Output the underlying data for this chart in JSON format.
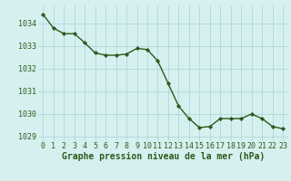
{
  "x": [
    0,
    1,
    2,
    3,
    4,
    5,
    6,
    7,
    8,
    9,
    10,
    11,
    12,
    13,
    14,
    15,
    16,
    17,
    18,
    19,
    20,
    21,
    22,
    23
  ],
  "y": [
    1034.4,
    1033.8,
    1033.55,
    1033.55,
    1033.15,
    1032.7,
    1032.6,
    1032.6,
    1032.65,
    1032.9,
    1032.85,
    1032.35,
    1031.35,
    1030.35,
    1029.8,
    1029.4,
    1029.45,
    1029.8,
    1029.8,
    1029.8,
    1030.0,
    1029.8,
    1029.45,
    1029.35
  ],
  "line_color": "#2d5a1b",
  "marker": "D",
  "marker_size": 2.2,
  "bg_color": "#d6f0f0",
  "grid_color": "#b0d8d8",
  "text_color": "#2d5a1b",
  "xlabel": "Graphe pression niveau de la mer (hPa)",
  "ylim": [
    1028.8,
    1034.8
  ],
  "yticks": [
    1029,
    1030,
    1031,
    1032,
    1033,
    1034
  ],
  "xticks": [
    0,
    1,
    2,
    3,
    4,
    5,
    6,
    7,
    8,
    9,
    10,
    11,
    12,
    13,
    14,
    15,
    16,
    17,
    18,
    19,
    20,
    21,
    22,
    23
  ],
  "xlabel_fontsize": 7.0,
  "tick_fontsize": 6.0,
  "linewidth": 1.0
}
